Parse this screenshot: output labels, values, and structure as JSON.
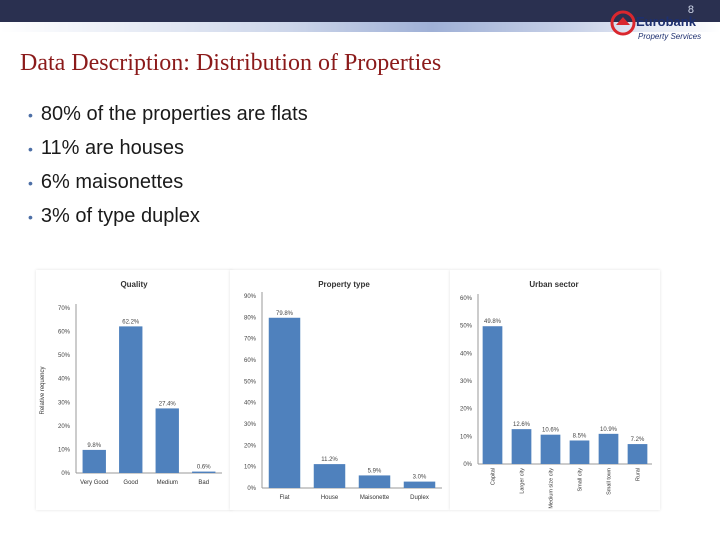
{
  "header": {
    "slide_number": "8"
  },
  "logo": {
    "brand": "Eurobank",
    "tagline": "Property Services"
  },
  "slide": {
    "title": "Data Description: Distribution of Properties",
    "bullets": [
      "80% of the properties are flats",
      "11% are houses",
      "6% maisonettes",
      "3% of type duplex"
    ]
  },
  "colors": {
    "bar": "#4f81bd",
    "title": "#8b1a1a",
    "header_bar": "#2a3050"
  },
  "chart_data": [
    {
      "type": "bar",
      "title": "Quality",
      "ylabel": "Relative requency",
      "categories": [
        "Very Good",
        "Good",
        "Medium",
        "Bad"
      ],
      "values": [
        9.8,
        62.2,
        27.4,
        0.6
      ],
      "labels": [
        "9.8%",
        "62.2%",
        "27.4%",
        "0.6%"
      ],
      "ylim": [
        0,
        70
      ],
      "ticks": [
        "0%",
        "10%",
        "20%",
        "30%",
        "40%",
        "50%",
        "60%",
        "70%"
      ]
    },
    {
      "type": "bar",
      "title": "Property type",
      "ylabel": "",
      "categories": [
        "Flat",
        "House",
        "Maisonette",
        "Duplex"
      ],
      "values": [
        79.8,
        11.2,
        5.9,
        3.0
      ],
      "labels": [
        "79.8%",
        "11.2%",
        "5.9%",
        "3.0%"
      ],
      "ylim": [
        0,
        90
      ],
      "ticks": [
        "0%",
        "10%",
        "20%",
        "30%",
        "40%",
        "50%",
        "60%",
        "70%",
        "80%",
        "90%"
      ]
    },
    {
      "type": "bar",
      "title": "Urban sector",
      "ylabel": "",
      "categories": [
        "Capital",
        "Larger city",
        "Medium size city",
        "Small city",
        "Small town",
        "Rural"
      ],
      "values": [
        49.8,
        12.6,
        10.6,
        8.5,
        10.9,
        7.2
      ],
      "labels": [
        "49.8%",
        "12.6%",
        "10.6%",
        "8.5%",
        "10.9%",
        "7.2%"
      ],
      "ylim": [
        0,
        60
      ],
      "ticks": [
        "0%",
        "10%",
        "20%",
        "30%",
        "40%",
        "50%",
        "60%"
      ]
    }
  ]
}
